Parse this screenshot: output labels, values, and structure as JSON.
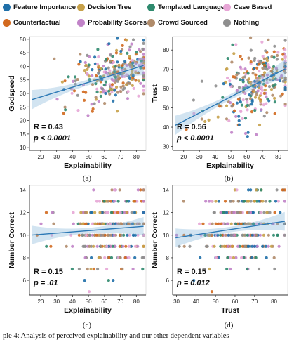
{
  "legend": [
    {
      "label": "Feature Importance",
      "color": "#1f6fa8"
    },
    {
      "label": "Decision Tree",
      "color": "#c7a14a"
    },
    {
      "label": "Templated Language",
      "color": "#2f8a6e"
    },
    {
      "label": "Case Based",
      "color": "#e7a6d6"
    },
    {
      "label": "Counterfactual",
      "color": "#d2691e"
    },
    {
      "label": "Probability Scores",
      "color": "#c183c8"
    },
    {
      "label": "Crowd Sourced",
      "color": "#b08b6a"
    },
    {
      "label": "Nothing",
      "color": "#8e8e8e"
    }
  ],
  "main_caption": "ple 4: Analysis of perceived explainability and our other dependent variables",
  "chart_data": [
    {
      "id": "a",
      "type": "scatter",
      "caption": "(a)",
      "xlabel": "Explainability",
      "ylabel": "Godspeed",
      "xlim": [
        13,
        86
      ],
      "ylim": [
        9,
        51
      ],
      "xticks": [
        20,
        30,
        40,
        50,
        60,
        70,
        80
      ],
      "yticks": [
        10,
        15,
        20,
        25,
        30,
        35,
        40,
        45,
        50
      ],
      "annot_r": "R = 0.43",
      "annot_p": "p < 0.0001",
      "fit": {
        "intercept": 25.1,
        "slope": 0.18
      },
      "seed": 11,
      "n": 300,
      "xmean": 66,
      "xsd": 12,
      "noise": 5.2,
      "xint": false,
      "yint": false
    },
    {
      "id": "b",
      "type": "scatter",
      "caption": "(b)",
      "xlabel": "Explainability",
      "ylabel": "Trust",
      "xlim": [
        13,
        86
      ],
      "ylim": [
        28,
        87
      ],
      "xticks": [
        20,
        30,
        40,
        50,
        60,
        70,
        80
      ],
      "yticks": [
        30,
        40,
        50,
        60,
        70,
        80
      ],
      "annot_r": "R = 0.56",
      "annot_p": "p < 0.0001",
      "fit": {
        "intercept": 34.8,
        "slope": 0.42
      },
      "seed": 23,
      "n": 300,
      "xmean": 66,
      "xsd": 12,
      "noise": 9,
      "xint": false,
      "yint": false
    },
    {
      "id": "c",
      "type": "scatter",
      "caption": "(c)",
      "xlabel": "Explainability",
      "ylabel": "Number Correct",
      "xlim": [
        13,
        86
      ],
      "ylim": [
        4.7,
        14.4
      ],
      "xticks": [
        20,
        30,
        40,
        50,
        60,
        70,
        80
      ],
      "yticks": [
        6,
        8,
        10,
        12,
        14
      ],
      "annot_r": "R = 0.15",
      "annot_p": "p = .01",
      "fit": {
        "intercept": 9.85,
        "slope": 0.011
      },
      "seed": 37,
      "n": 300,
      "xmean": 65,
      "xsd": 13,
      "noise": 1.8,
      "xint": false,
      "yint": true
    },
    {
      "id": "d",
      "type": "scatter",
      "caption": "(d)",
      "xlabel": "Trust",
      "ylabel": "Number Correct",
      "xlim": [
        28,
        87
      ],
      "ylim": [
        4.7,
        14.4
      ],
      "xticks": [
        30,
        40,
        50,
        60,
        70,
        80
      ],
      "yticks": [
        6,
        8,
        10,
        12,
        14
      ],
      "annot_r": "R = 0.15",
      "annot_p": "p = 0.012",
      "fit": {
        "intercept": 9.0,
        "slope": 0.026
      },
      "seed": 53,
      "n": 300,
      "xmean": 63,
      "xsd": 11,
      "noise": 1.8,
      "xint": false,
      "yint": true
    }
  ]
}
